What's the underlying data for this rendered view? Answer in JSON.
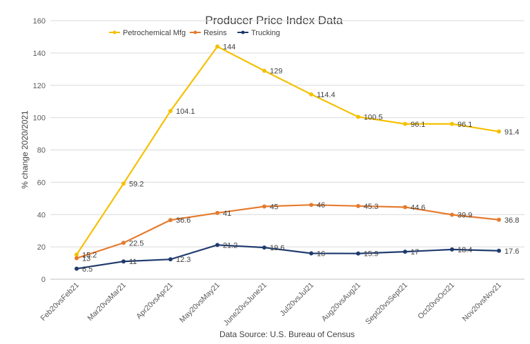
{
  "chart_data": {
    "type": "line",
    "title": "Producer Price Index Data",
    "xlabel": "Data Source: U.S. Bureau of Census",
    "ylabel": "% change 2020/2021",
    "categories": [
      "Feb20vsFeb21",
      "Mar20vsMar21",
      "Apr20vsApr21",
      "May20vsMay21",
      "June20vsJune21",
      "Jul20vsJul21",
      "Aug20vsAug21",
      "Sept20vsSept21",
      "Oct20vsOct21",
      "Nov20vsNov21"
    ],
    "ylim": [
      0,
      160
    ],
    "yticks": [
      0,
      20,
      40,
      60,
      80,
      100,
      120,
      140,
      160
    ],
    "grid": true,
    "legend": "top-left",
    "series": [
      {
        "name": "Petrochemical Mfg",
        "color": "#F5C000",
        "values": [
          15.2,
          59.2,
          104.1,
          144,
          129,
          114.4,
          100.5,
          96.1,
          96.1,
          91.4
        ]
      },
      {
        "name": "Resins",
        "color": "#E67A2E",
        "values": [
          13,
          22.5,
          36.6,
          41,
          45,
          46,
          45.3,
          44.6,
          39.9,
          36.8
        ]
      },
      {
        "name": "Trucking",
        "color": "#1F3A6E",
        "values": [
          6.5,
          11,
          12.3,
          21.2,
          19.6,
          16,
          15.9,
          17,
          18.4,
          17.6
        ]
      }
    ]
  }
}
